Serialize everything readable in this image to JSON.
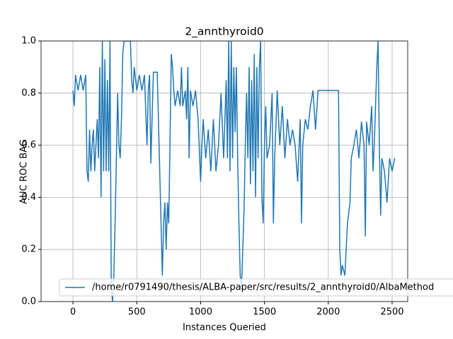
{
  "chart_data": {
    "type": "line",
    "title": "2_annthyroid0",
    "x_label": "Instances Queried",
    "y_label": "AUC ROC BAG",
    "x": [
      0,
      10,
      20,
      40,
      60,
      80,
      100,
      110,
      120,
      130,
      140,
      150,
      160,
      170,
      180,
      190,
      200,
      210,
      220,
      230,
      240,
      250,
      260,
      270,
      280,
      290,
      300,
      310,
      320,
      330,
      340,
      350,
      360,
      370,
      380,
      390,
      400,
      450,
      460,
      470,
      480,
      500,
      520,
      540,
      560,
      580,
      590,
      600,
      610,
      630,
      660,
      690,
      700,
      710,
      720,
      730,
      740,
      750,
      760,
      770,
      780,
      790,
      800,
      820,
      840,
      850,
      860,
      880,
      890,
      900,
      910,
      920,
      940,
      960,
      980,
      1000,
      1010,
      1020,
      1040,
      1060,
      1080,
      1100,
      1120,
      1140,
      1160,
      1180,
      1200,
      1210,
      1220,
      1230,
      1240,
      1250,
      1260,
      1270,
      1280,
      1290,
      1300,
      1310,
      1320,
      1330,
      1340,
      1350,
      1360,
      1370,
      1380,
      1390,
      1400,
      1410,
      1420,
      1430,
      1440,
      1450,
      1460,
      1470,
      1480,
      1490,
      1500,
      1510,
      1520,
      1540,
      1560,
      1570,
      1580,
      1600,
      1620,
      1640,
      1660,
      1680,
      1700,
      1720,
      1740,
      1760,
      1780,
      1790,
      1800,
      1820,
      1840,
      1860,
      1880,
      1900,
      1920,
      1940,
      1960,
      2000,
      2080,
      2090,
      2100,
      2110,
      2130,
      2150,
      2170,
      2180,
      2200,
      2220,
      2240,
      2260,
      2280,
      2290,
      2300,
      2320,
      2340,
      2350,
      2360,
      2380,
      2390,
      2400,
      2410,
      2420,
      2440,
      2460,
      2480,
      2500,
      2520
    ],
    "series": [
      {
        "name": "/home/r0791490/thesis/ALBA-paper/src/results/2_annthyroid0/AlbaMethod",
        "color": "#1f77b4",
        "values": [
          0.81,
          0.75,
          0.87,
          0.81,
          0.87,
          0.81,
          0.87,
          0.5,
          0.46,
          0.66,
          0.5,
          0.6,
          0.66,
          0.5,
          0.6,
          0.7,
          0.55,
          0.9,
          0.4,
          1.0,
          0.5,
          0.93,
          0.5,
          0.85,
          0.5,
          1.0,
          0.05,
          0.0,
          0.1,
          0.3,
          0.55,
          0.8,
          0.6,
          0.55,
          0.7,
          0.95,
          1.0,
          1.0,
          0.85,
          0.8,
          0.9,
          0.81,
          0.87,
          0.81,
          0.87,
          0.6,
          0.81,
          0.87,
          0.53,
          0.88,
          0.88,
          0.3,
          0.1,
          0.3,
          0.38,
          0.2,
          0.38,
          0.3,
          0.6,
          0.95,
          0.9,
          0.81,
          0.75,
          0.81,
          0.75,
          0.9,
          0.75,
          0.81,
          0.7,
          0.9,
          0.55,
          0.81,
          0.75,
          0.81,
          0.7,
          0.46,
          0.6,
          0.7,
          0.55,
          0.66,
          0.5,
          0.7,
          0.5,
          0.6,
          0.8,
          0.55,
          0.85,
          0.55,
          1.0,
          0.5,
          1.0,
          0.55,
          0.9,
          0.65,
          0.9,
          0.55,
          0.3,
          0.1,
          0.05,
          0.2,
          0.35,
          0.6,
          0.8,
          0.55,
          0.9,
          0.45,
          0.85,
          0.5,
          0.95,
          0.4,
          0.9,
          0.55,
          0.9,
          1.0,
          0.4,
          0.3,
          0.6,
          0.75,
          0.55,
          0.6,
          0.8,
          0.3,
          0.55,
          0.81,
          0.6,
          0.75,
          0.55,
          0.7,
          0.6,
          0.66,
          0.6,
          0.46,
          0.7,
          0.3,
          0.6,
          0.7,
          0.66,
          0.75,
          0.81,
          0.66,
          0.81,
          0.81,
          0.81,
          0.81,
          0.81,
          0.2,
          0.1,
          0.14,
          0.1,
          0.3,
          0.38,
          0.55,
          0.6,
          0.66,
          0.55,
          0.69,
          0.6,
          0.25,
          0.69,
          0.6,
          0.75,
          0.5,
          0.6,
          0.9,
          1.0,
          0.6,
          0.33,
          0.55,
          0.5,
          0.38,
          0.55,
          0.5,
          0.55
        ]
      }
    ],
    "xlim": [
      -250,
      2622
    ],
    "ylim": [
      0,
      1
    ],
    "xticks": [
      0,
      500,
      1000,
      1500,
      2000,
      2500
    ],
    "yticks": [
      {
        "value": 0,
        "label": "0.0"
      },
      {
        "value": 0.2,
        "label": "0.2"
      },
      {
        "value": 0.4,
        "label": "0.4"
      },
      {
        "value": 0.6,
        "label": "0.6"
      },
      {
        "value": 0.8,
        "label": "0.8"
      },
      {
        "value": 1,
        "label": "1.0"
      }
    ],
    "grid": true,
    "legend": "lower left"
  }
}
